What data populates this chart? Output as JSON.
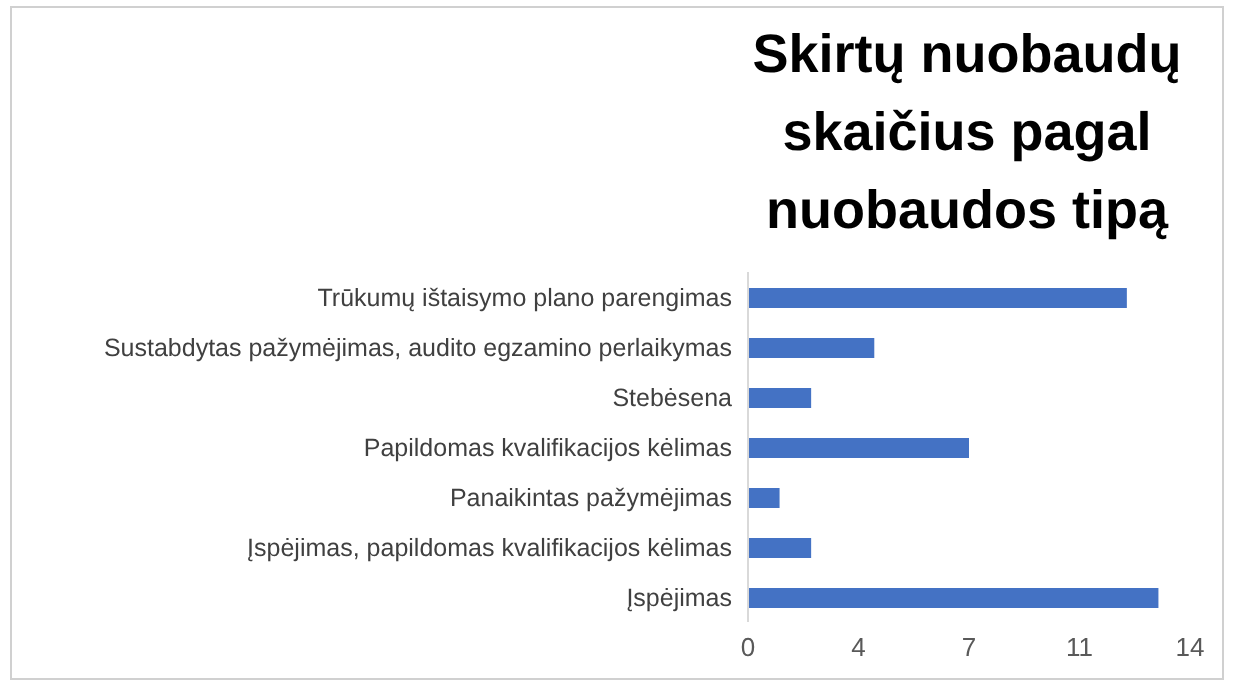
{
  "chart_data": {
    "type": "bar",
    "orientation": "horizontal",
    "title": "Skirtų nuobaudų skaičius pagal nuobaudos tipą",
    "categories": [
      "Trūkumų ištaisymo plano parengimas",
      "Sustabdytas pažymėjimas, audito egzamino perlaikymas",
      "Stebėsena",
      "Papildomas kvalifikacijos kėlimas",
      "Panaikintas pažymėjimas",
      "Įspėjimas, papildomas kvalifikacijos kėlimas",
      "Įspėjimas"
    ],
    "values": [
      12,
      4,
      2,
      7,
      1,
      2,
      13
    ],
    "color": "#4472c4",
    "xlim": [
      0,
      14
    ],
    "xticks": [
      0,
      {
        "value": 3.5,
        "label": "4"
      },
      7,
      {
        "value": 10.5,
        "label": "11"
      },
      14
    ]
  }
}
